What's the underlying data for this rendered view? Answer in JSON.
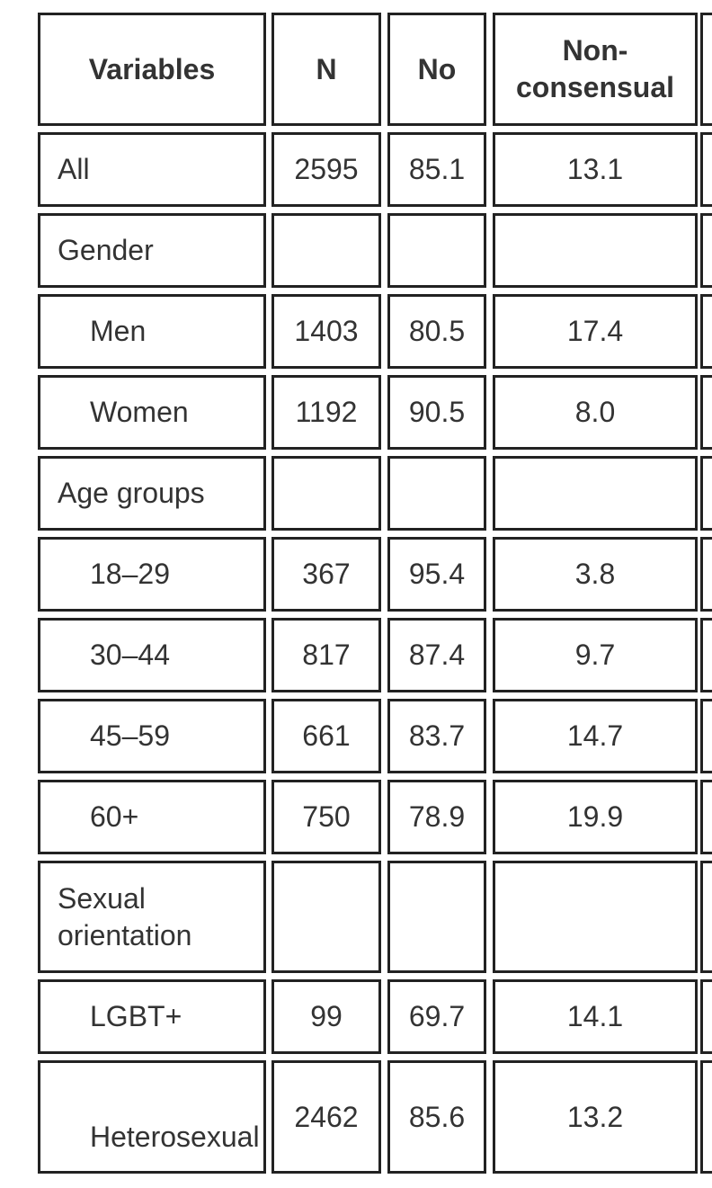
{
  "table": {
    "header": [
      "Variables",
      "N",
      "No",
      "Non-\nconsensual"
    ],
    "rows": [
      {
        "label": "All",
        "values": [
          "2595",
          "85.1",
          "13.1"
        ]
      },
      {
        "label": "Gender",
        "rows": [
          {
            "label": "Men",
            "values": [
              "1403",
              "80.5",
              "17.4"
            ]
          },
          {
            "label": "Women",
            "values": [
              "1192",
              "90.5",
              "8.0"
            ]
          }
        ]
      },
      {
        "label": "Age groups",
        "rows": [
          {
            "label": "18–29",
            "values": [
              "367",
              "95.4",
              "3.8"
            ]
          },
          {
            "label": "30–44",
            "values": [
              "817",
              "87.4",
              "9.7"
            ]
          },
          {
            "label": "45–59",
            "values": [
              "661",
              "83.7",
              "14.7"
            ]
          },
          {
            "label": "60+",
            "values": [
              "750",
              "78.9",
              "19.9"
            ]
          }
        ]
      },
      {
        "label": "Sexual orientation",
        "rows": [
          {
            "label": "LGBT+",
            "values": [
              "99",
              "69.7",
              "14.1"
            ]
          },
          {
            "label": "Heterosexual",
            "values": [
              "2462",
              "85.6",
              "13.2"
            ]
          }
        ]
      }
    ]
  }
}
